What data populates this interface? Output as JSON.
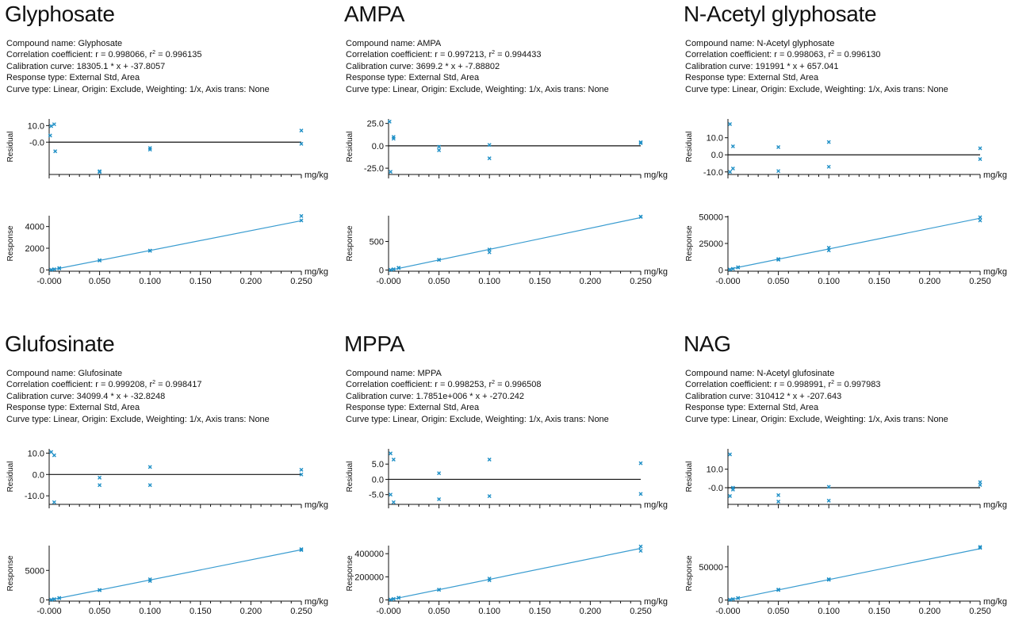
{
  "labels": {
    "compound_name": "Compound name: ",
    "correlation_prefix": "Correlation coefficient: r = ",
    "r2_prefix": ", r",
    "r2_sup": "2",
    "r2_eq": " = ",
    "calibration_prefix": "Calibration curve: ",
    "response_type": "Response type: External Std, Area",
    "curve_type": "Curve type: Linear, Origin: Exclude, Weighting: 1/x, Axis trans: None",
    "residual_axis": "Residual",
    "response_axis": "Response",
    "x_unit": "mg/kg"
  },
  "colors": {
    "points": "#1e8fc6",
    "fit": "#3a9cd0",
    "axis": "#111111"
  },
  "chart_data": [
    {
      "type": "scatter",
      "title": "Glyphosate",
      "compound": "Glyphosate",
      "r": "0.998066",
      "r2": "0.996135",
      "calibration": "18305.1 * x + -37.8057",
      "slope": 18305.1,
      "intercept": -37.8057,
      "xticks": [
        "-0.000",
        "0.050",
        "0.100",
        "0.150",
        "0.200",
        "0.250"
      ],
      "xvals": [
        0,
        0.05,
        0.1,
        0.15,
        0.2,
        0.25
      ],
      "xlim": [
        0,
        0.25
      ],
      "xlabel": "mg/kg",
      "residual": {
        "ylabel": "Residual",
        "ylim": [
          -19.5,
          14
        ],
        "yticks": [
          10,
          0
        ],
        "ytick_labels": [
          "10.0",
          "-0.0"
        ],
        "points": [
          [
            0.002,
            9.7
          ],
          [
            0.005,
            10.8
          ],
          [
            0.001,
            4
          ],
          [
            0.006,
            -5.5
          ],
          [
            0.05,
            -18
          ],
          [
            0.05,
            -17.5
          ],
          [
            0.1,
            -3.5
          ],
          [
            0.1,
            -4.5
          ],
          [
            0.25,
            7
          ],
          [
            0.25,
            -1
          ]
        ]
      },
      "response": {
        "ylabel": "Response",
        "ylim": [
          -120,
          5000
        ],
        "yticks": [
          0,
          2000,
          4000
        ],
        "ytick_labels": [
          "0",
          "2000",
          "4000"
        ],
        "points": [
          [
            0.002,
            20
          ],
          [
            0.005,
            60
          ],
          [
            0.01,
            140
          ],
          [
            0.01,
            170
          ],
          [
            0.05,
            870
          ],
          [
            0.05,
            890
          ],
          [
            0.1,
            1780
          ],
          [
            0.1,
            1760
          ],
          [
            0.25,
            4970
          ],
          [
            0.25,
            4560
          ]
        ]
      }
    },
    {
      "type": "scatter",
      "title": "AMPA",
      "compound": "AMPA",
      "r": "0.997213",
      "r2": "0.994433",
      "calibration": "3699.2 * x + -7.88802",
      "slope": 3699.2,
      "intercept": -7.88802,
      "xticks": [
        "-0.000",
        "0.050",
        "0.100",
        "0.150",
        "0.200",
        "0.250"
      ],
      "xvals": [
        0,
        0.05,
        0.1,
        0.15,
        0.2,
        0.25
      ],
      "xlim": [
        0,
        0.25
      ],
      "xlabel": "mg/kg",
      "residual": {
        "ylabel": "Residual",
        "ylim": [
          -32,
          30
        ],
        "yticks": [
          25,
          0,
          -25
        ],
        "ytick_labels": [
          "25.0",
          "0.0",
          "-25.0"
        ],
        "points": [
          [
            0.001,
            27
          ],
          [
            0.002,
            -29
          ],
          [
            0.005,
            10
          ],
          [
            0.005,
            8
          ],
          [
            0.05,
            -1
          ],
          [
            0.05,
            -5
          ],
          [
            0.1,
            1
          ],
          [
            0.1,
            -14
          ],
          [
            0.25,
            3
          ],
          [
            0.25,
            4
          ]
        ]
      },
      "response": {
        "ylabel": "Response",
        "ylim": [
          -20,
          950
        ],
        "yticks": [
          0,
          500
        ],
        "ytick_labels": [
          "0",
          "500"
        ],
        "points": [
          [
            0.002,
            5
          ],
          [
            0.005,
            15
          ],
          [
            0.01,
            40
          ],
          [
            0.01,
            35
          ],
          [
            0.05,
            180
          ],
          [
            0.05,
            178
          ],
          [
            0.1,
            360
          ],
          [
            0.1,
            310
          ],
          [
            0.25,
            935
          ],
          [
            0.25,
            930
          ]
        ]
      }
    },
    {
      "type": "scatter",
      "title": "N-Acetyl glyphosate",
      "compound": "N-Acetyl glyphosate",
      "r": "0.998063",
      "r2": "0.996130",
      "calibration": "191991 * x + 657.041",
      "slope": 191991,
      "intercept": 657.041,
      "xticks": [
        "-0.000",
        "0.050",
        "0.100",
        "0.150",
        "0.200",
        "0.250"
      ],
      "xvals": [
        0,
        0.05,
        0.1,
        0.15,
        0.2,
        0.25
      ],
      "xlim": [
        0,
        0.25
      ],
      "xlabel": "mg/kg",
      "residual": {
        "ylabel": "Residual",
        "ylim": [
          -11.5,
          21
        ],
        "yticks": [
          10,
          0,
          -10
        ],
        "ytick_labels": [
          "10.0",
          "0.0",
          "-10.0"
        ],
        "points": [
          [
            0.002,
            18
          ],
          [
            0.002,
            -10
          ],
          [
            0.005,
            5
          ],
          [
            0.005,
            -8
          ],
          [
            0.05,
            4.5
          ],
          [
            0.05,
            -9.5
          ],
          [
            0.1,
            7.5
          ],
          [
            0.1,
            -7
          ],
          [
            0.25,
            3.8
          ],
          [
            0.25,
            -2.5
          ]
        ]
      },
      "response": {
        "ylabel": "Response",
        "ylim": [
          -1000,
          51000
        ],
        "yticks": [
          0,
          25000,
          50000
        ],
        "ytick_labels": [
          "0",
          "25000",
          "50000"
        ],
        "points": [
          [
            0.002,
            600
          ],
          [
            0.005,
            1200
          ],
          [
            0.01,
            2500
          ],
          [
            0.01,
            2700
          ],
          [
            0.05,
            10400
          ],
          [
            0.05,
            9800
          ],
          [
            0.1,
            21000
          ],
          [
            0.1,
            18500
          ],
          [
            0.25,
            49500
          ],
          [
            0.25,
            46500
          ]
        ]
      }
    },
    {
      "type": "scatter",
      "title": "Glufosinate",
      "compound": "Glufosinate",
      "r": "0.999208",
      "r2": "0.998417",
      "calibration": "34099.4 * x + -32.8248",
      "slope": 34099.4,
      "intercept": -32.8248,
      "xticks": [
        "-0.000",
        "0.050",
        "0.100",
        "0.150",
        "0.200",
        "0.250"
      ],
      "xvals": [
        0,
        0.05,
        0.1,
        0.15,
        0.2,
        0.25
      ],
      "xlim": [
        0,
        0.25
      ],
      "xlabel": "mg/kg",
      "residual": {
        "ylabel": "Residual",
        "ylim": [
          -14,
          12
        ],
        "yticks": [
          10,
          0,
          -10
        ],
        "ytick_labels": [
          "10.0",
          "0.0",
          "-10.0"
        ],
        "points": [
          [
            0.002,
            10.5
          ],
          [
            0.005,
            9
          ],
          [
            0.005,
            -13
          ],
          [
            0.05,
            -1.5
          ],
          [
            0.05,
            -5
          ],
          [
            0.1,
            3.5
          ],
          [
            0.1,
            -5
          ],
          [
            0.25,
            2.2
          ],
          [
            0.25,
            0
          ]
        ]
      },
      "response": {
        "ylabel": "Response",
        "ylim": [
          -200,
          9200
        ],
        "yticks": [
          0,
          5000
        ],
        "ytick_labels": [
          "0",
          "5000"
        ],
        "points": [
          [
            0.002,
            40
          ],
          [
            0.005,
            130
          ],
          [
            0.01,
            300
          ],
          [
            0.01,
            330
          ],
          [
            0.05,
            1680
          ],
          [
            0.05,
            1650
          ],
          [
            0.1,
            3500
          ],
          [
            0.1,
            3200
          ],
          [
            0.25,
            8600
          ],
          [
            0.25,
            8450
          ]
        ]
      }
    },
    {
      "type": "scatter",
      "title": "MPPA",
      "compound": "MPPA",
      "r": "0.998253",
      "r2": "0.996508",
      "calibration": "1.7851e+006 * x + -270.242",
      "slope": 1785100,
      "intercept": -270.242,
      "xticks": [
        "-0.000",
        "0.050",
        "0.100",
        "0.150",
        "0.200",
        "0.250"
      ],
      "xvals": [
        0,
        0.05,
        0.1,
        0.15,
        0.2,
        0.25
      ],
      "xlim": [
        0,
        0.25
      ],
      "xlabel": "mg/kg",
      "residual": {
        "ylabel": "Residual",
        "ylim": [
          -8.2,
          10
        ],
        "yticks": [
          5,
          0,
          -5
        ],
        "ytick_labels": [
          "5.0",
          "0.0",
          "-5.0"
        ],
        "points": [
          [
            0.002,
            8.5
          ],
          [
            0.002,
            -5
          ],
          [
            0.005,
            6.5
          ],
          [
            0.005,
            -7.5
          ],
          [
            0.05,
            2
          ],
          [
            0.05,
            -6.5
          ],
          [
            0.1,
            6.5
          ],
          [
            0.1,
            -5.5
          ],
          [
            0.25,
            5.3
          ],
          [
            0.25,
            -4.8
          ]
        ]
      },
      "response": {
        "ylabel": "Response",
        "ylim": [
          -10000,
          470000
        ],
        "yticks": [
          0,
          200000,
          400000
        ],
        "ytick_labels": [
          "0",
          "200000",
          "400000"
        ],
        "points": [
          [
            0.002,
            3000
          ],
          [
            0.005,
            9000
          ],
          [
            0.01,
            18000
          ],
          [
            0.01,
            19000
          ],
          [
            0.05,
            89000
          ],
          [
            0.05,
            88000
          ],
          [
            0.1,
            185000
          ],
          [
            0.1,
            170000
          ],
          [
            0.25,
            462000
          ],
          [
            0.25,
            425000
          ]
        ]
      }
    },
    {
      "type": "scatter",
      "title": "NAG",
      "compound": "N-Acetyl glufosinate",
      "r": "0.998991",
      "r2": "0.997983",
      "calibration": "310412 * x + -207.643",
      "slope": 310412,
      "intercept": -207.643,
      "xticks": [
        "-0.000",
        "0.050",
        "0.100",
        "0.150",
        "0.200",
        "0.250"
      ],
      "xvals": [
        0,
        0.05,
        0.1,
        0.15,
        0.2,
        0.25
      ],
      "xlim": [
        0,
        0.25
      ],
      "xlabel": "mg/kg",
      "residual": {
        "ylabel": "Residual",
        "ylim": [
          -9,
          21
        ],
        "yticks": [
          10,
          0
        ],
        "ytick_labels": [
          "10.0",
          "-0.0"
        ],
        "points": [
          [
            0.002,
            18
          ],
          [
            0.002,
            -4.5
          ],
          [
            0.005,
            -1
          ],
          [
            0.005,
            0
          ],
          [
            0.05,
            -4
          ],
          [
            0.05,
            -7.5
          ],
          [
            0.1,
            0.5
          ],
          [
            0.1,
            -7
          ],
          [
            0.25,
            3
          ],
          [
            0.25,
            1.5
          ]
        ]
      },
      "response": {
        "ylabel": "Response",
        "ylim": [
          -1500,
          82000
        ],
        "yticks": [
          0,
          50000
        ],
        "ytick_labels": [
          "0",
          "50000"
        ],
        "points": [
          [
            0.002,
            600
          ],
          [
            0.005,
            1500
          ],
          [
            0.01,
            3000
          ],
          [
            0.01,
            3200
          ],
          [
            0.05,
            15200
          ],
          [
            0.05,
            15800
          ],
          [
            0.1,
            30500
          ],
          [
            0.1,
            31500
          ],
          [
            0.25,
            80000
          ],
          [
            0.25,
            78500
          ]
        ]
      }
    }
  ]
}
